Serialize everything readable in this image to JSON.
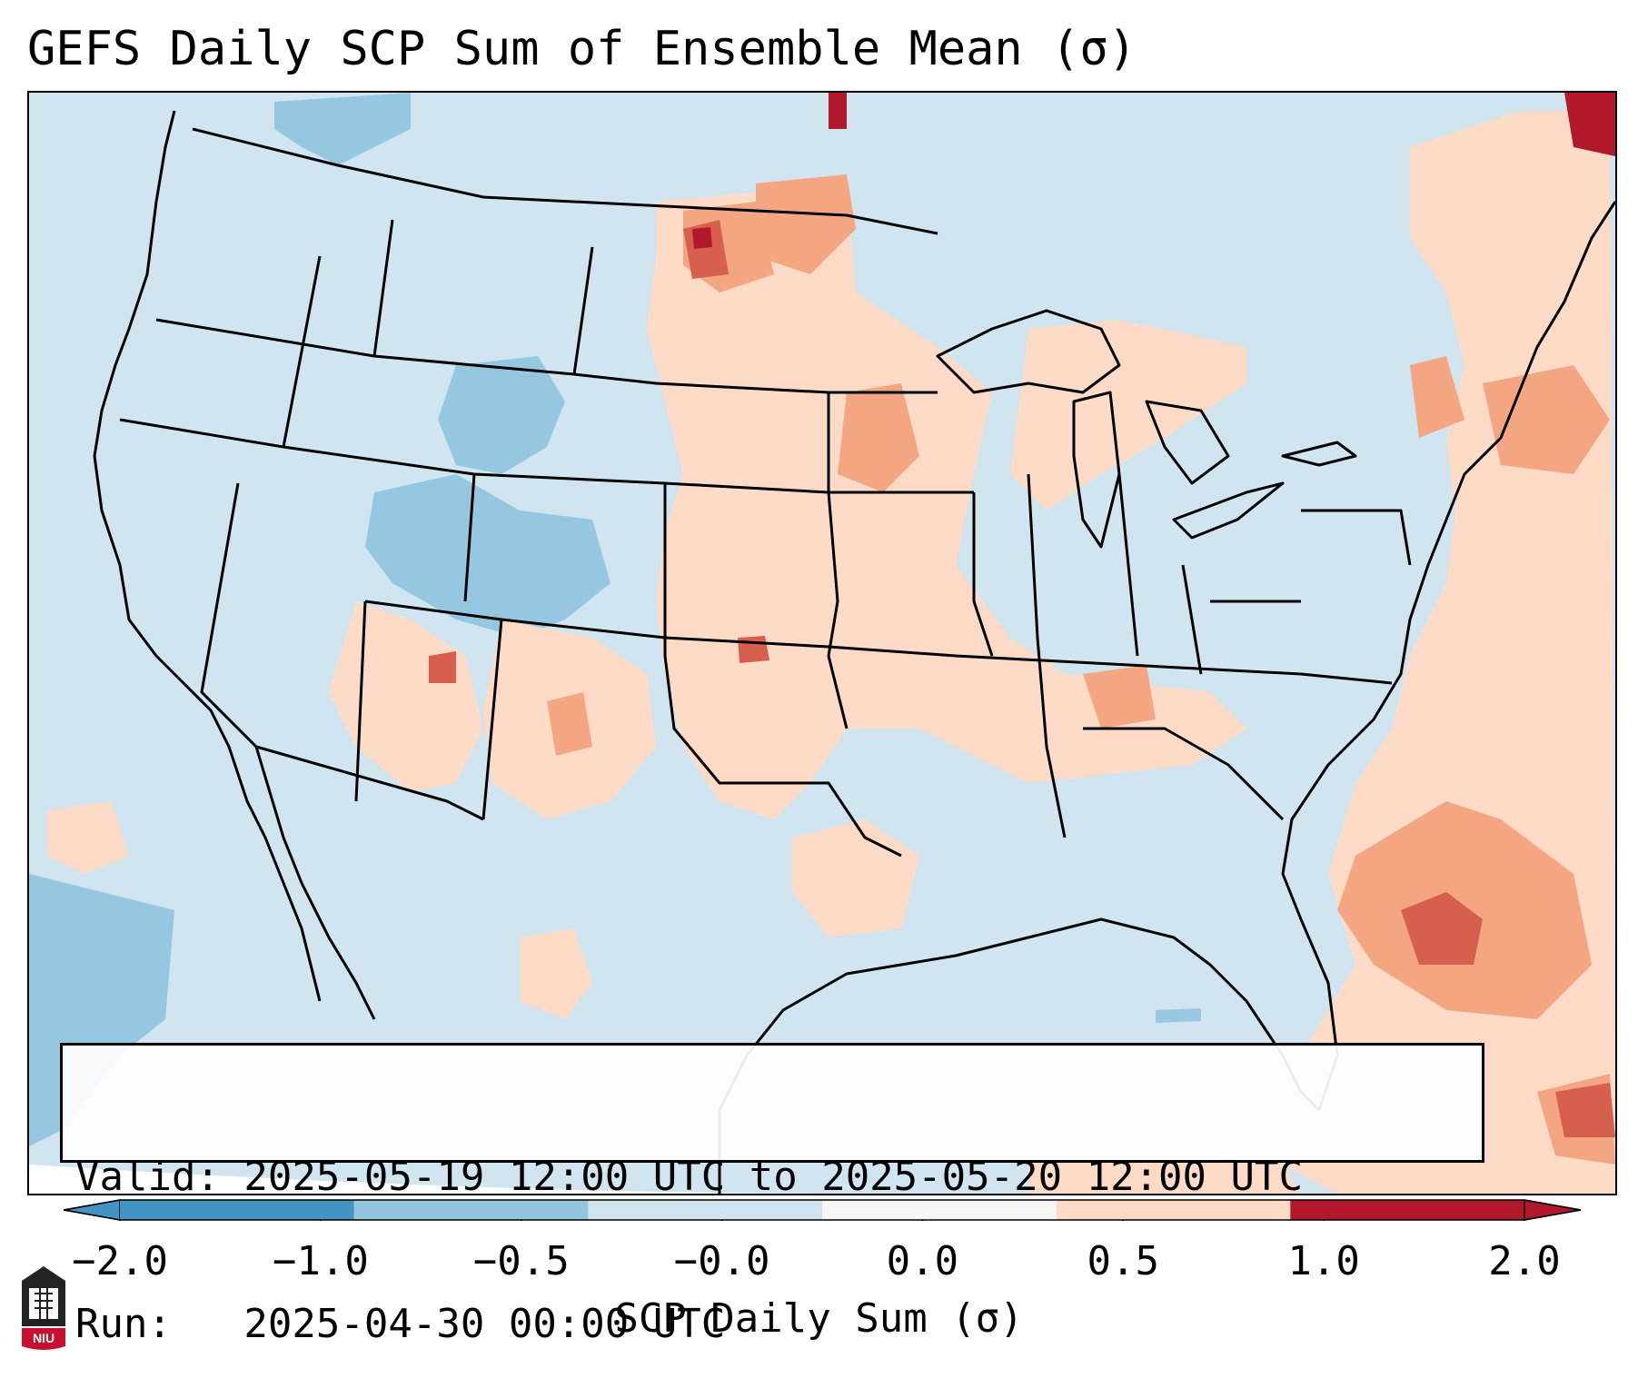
{
  "title": "GEFS Daily SCP Sum of Ensemble Mean (σ)",
  "info": {
    "valid_line": "Valid: 2025-05-19 12:00 UTC to 2025-05-20 12:00 UTC",
    "run_line": "Run:   2025-04-30 00:00 UTC"
  },
  "colorbar": {
    "title": "SCP Daily Sum (σ)",
    "ticks": [
      "−2.0",
      "−1.0",
      "−0.5",
      "−0.0",
      "0.0",
      "0.5",
      "1.0",
      "2.0"
    ],
    "colors": [
      "#4393c3",
      "#92c5de",
      "#d1e5f0",
      "#f7f7f7",
      "#fddbc7",
      "#f4a582",
      "#d6604d",
      "#b2182b"
    ],
    "extend": "both"
  },
  "logo": {
    "text": "NIU",
    "icon": "university-shield-icon"
  },
  "colors": {
    "ocean": "#d1e5f0",
    "neg_strong": "#92c5de",
    "pos_light": "#fddbc7",
    "pos_med": "#f4a582",
    "pos_strong": "#d6604d",
    "pos_max": "#b2182b",
    "border": "#000000"
  }
}
